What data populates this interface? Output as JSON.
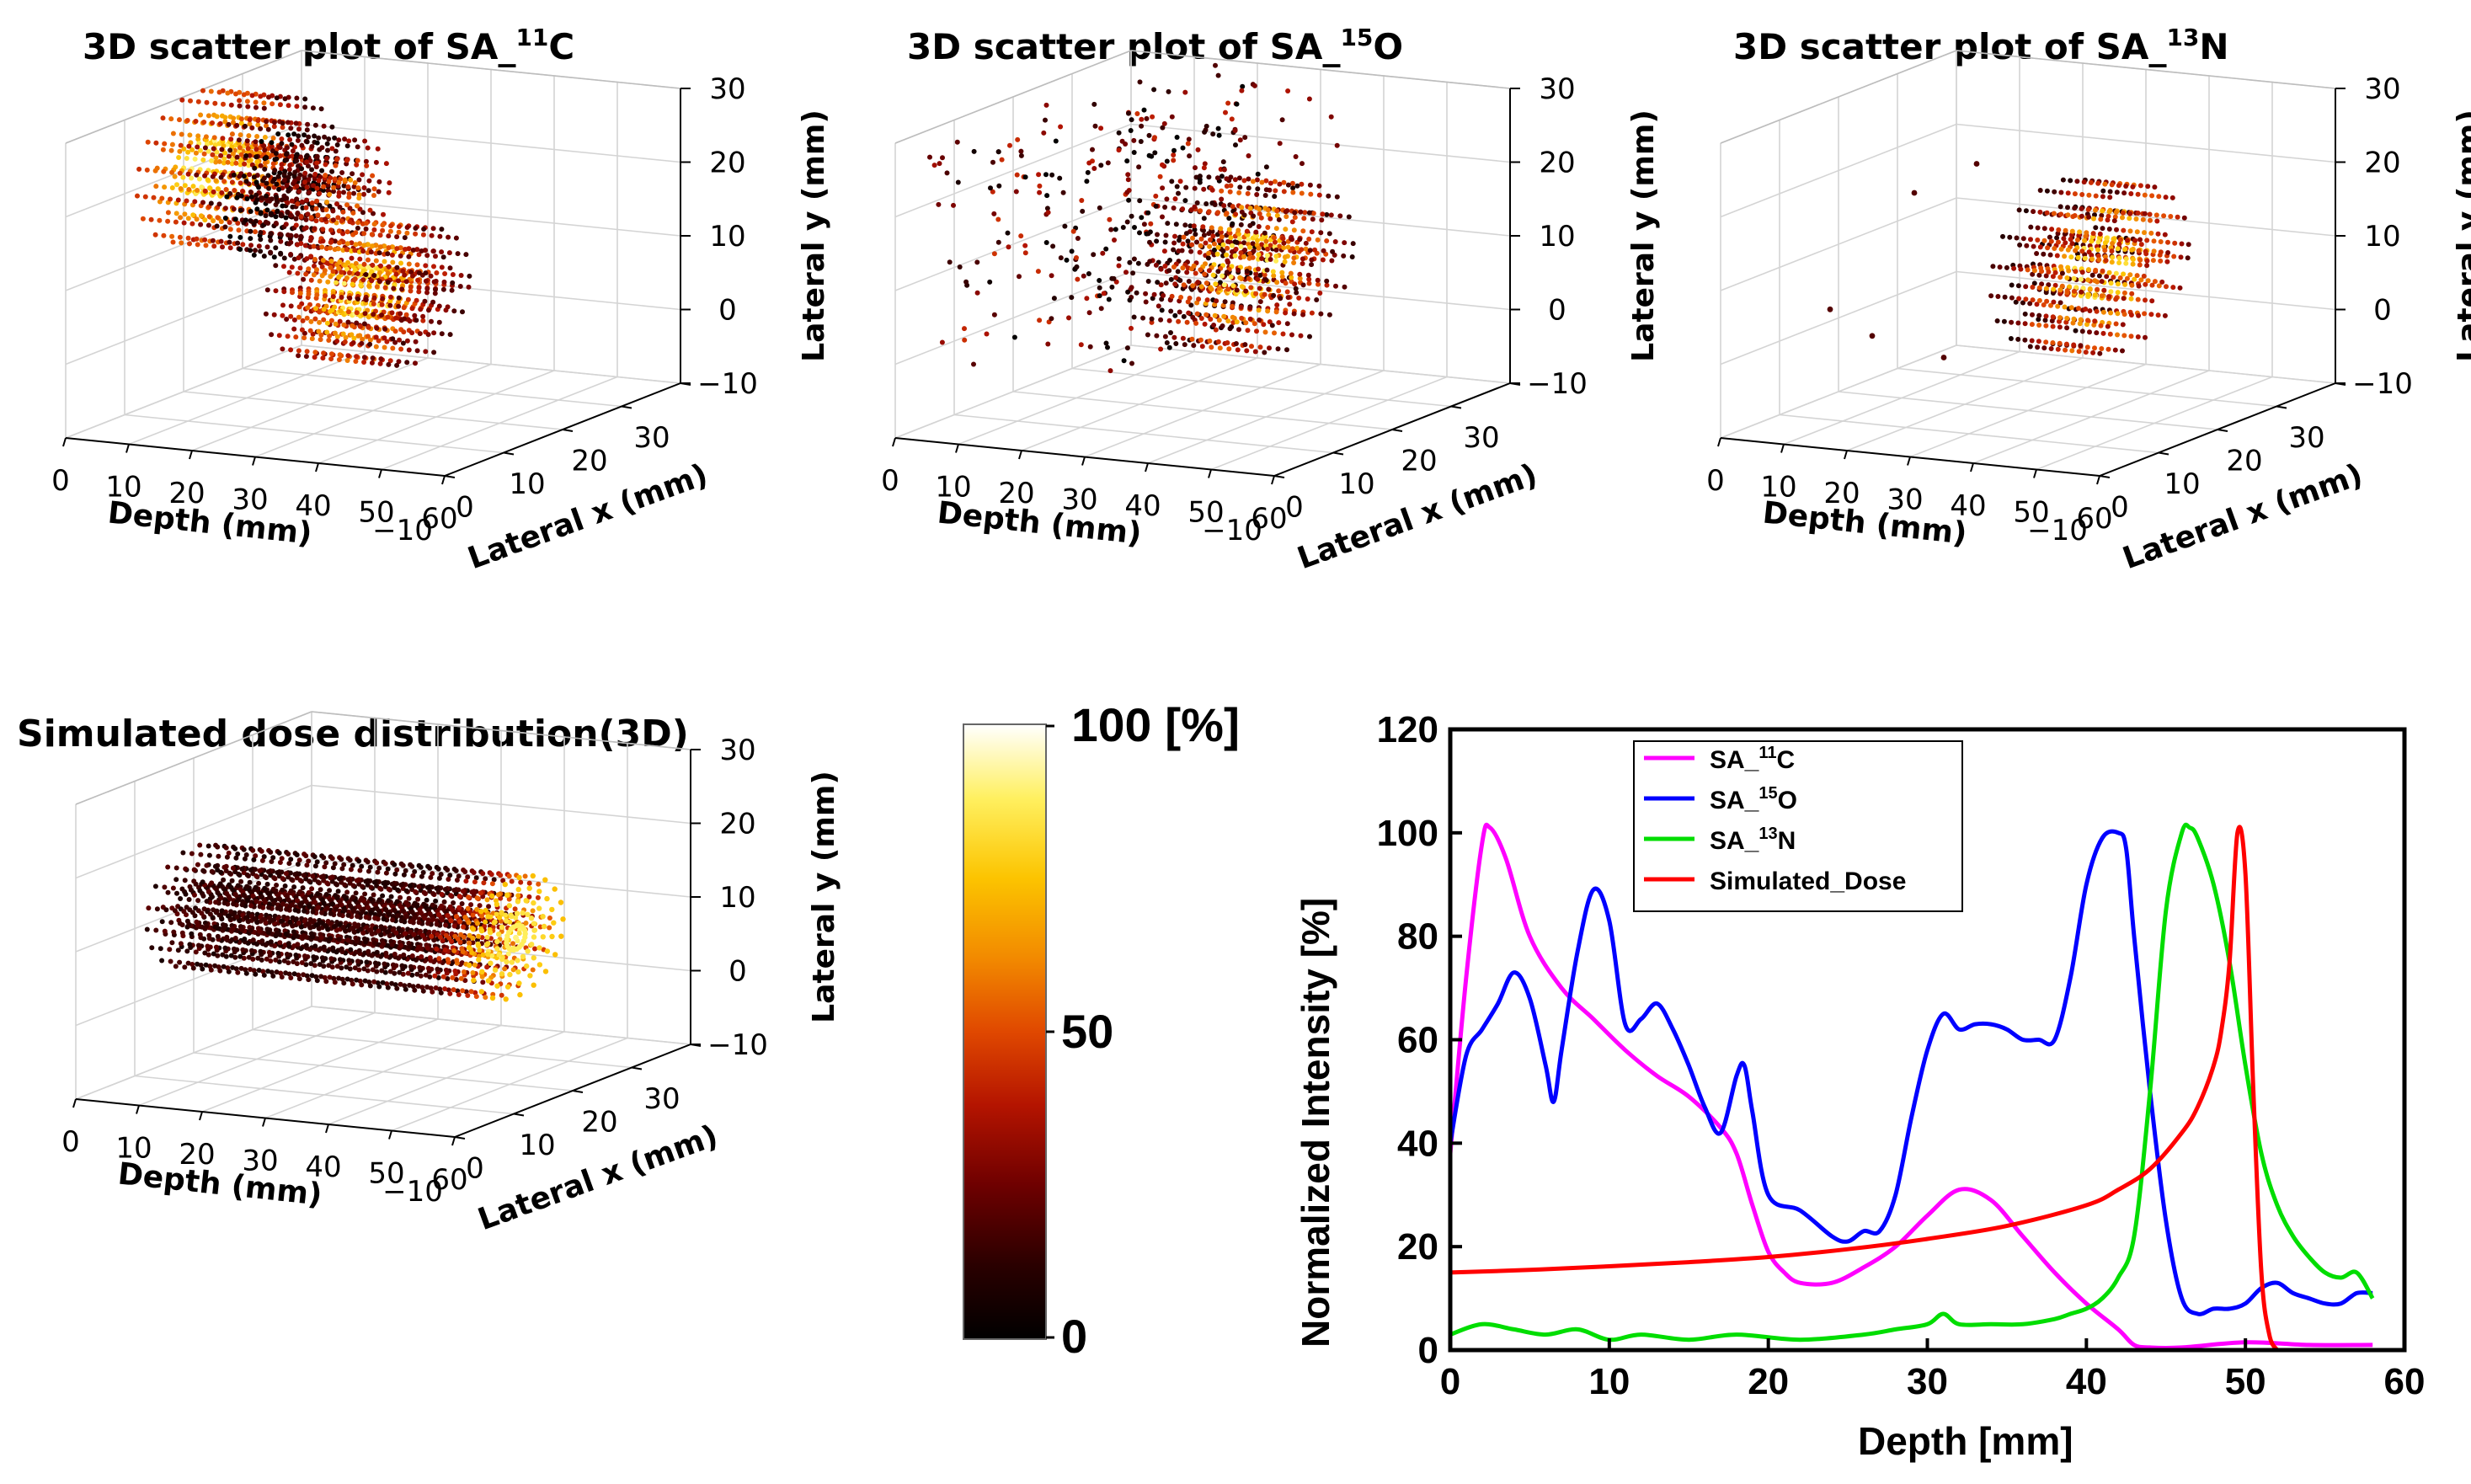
{
  "scatter_panels": [
    {
      "title_prefix": "3D scatter plot of SA_",
      "title_sup": "11",
      "title_suffix": "C",
      "kind": "carbon"
    },
    {
      "title_prefix": "3D scatter plot of SA_",
      "title_sup": "15",
      "title_suffix": "O",
      "kind": "oxygen"
    },
    {
      "title_prefix": "3D scatter plot of SA_",
      "title_sup": "13",
      "title_suffix": "N",
      "kind": "nitrogen"
    },
    {
      "title_prefix": "Simulated dose distribution(3D)",
      "title_sup": "",
      "title_suffix": "",
      "kind": "dose"
    }
  ],
  "axes3d": {
    "depth_label": "Depth (mm)",
    "depth_ticks": [
      "0",
      "10",
      "20",
      "30",
      "40",
      "50",
      "60"
    ],
    "lateral_x_label": "Lateral x (mm)",
    "lateral_x_ticks": [
      "−10",
      "0",
      "10",
      "20",
      "30"
    ],
    "lateral_y_label": "Lateral y (mm)",
    "lateral_y_ticks": [
      "−10",
      "0",
      "10",
      "20",
      "30"
    ]
  },
  "colorbar": {
    "labels": [
      "100 [%]",
      "50",
      "0"
    ],
    "stops": [
      "#000000",
      "#2a0000",
      "#6e0000",
      "#b41400",
      "#e04800",
      "#f28a00",
      "#fcc400",
      "#fff060",
      "#ffffff"
    ]
  },
  "chart_data": {
    "type": "line",
    "xlabel": "Depth [mm]",
    "ylabel": "Normalized Intensity [%]",
    "xlim": [
      0,
      60
    ],
    "ylim": [
      0,
      120
    ],
    "xticks": [
      0,
      10,
      20,
      30,
      40,
      50,
      60
    ],
    "yticks": [
      0,
      20,
      40,
      60,
      80,
      100,
      120
    ],
    "legend_position": "top-left",
    "series": [
      {
        "name": "SA_11C",
        "label_prefix": "SA_",
        "label_sup": "11",
        "label_suffix": "C",
        "color": "#ff00ff",
        "points": [
          [
            0,
            38
          ],
          [
            1,
            72
          ],
          [
            2,
            98
          ],
          [
            2.5,
            101
          ],
          [
            3.5,
            95
          ],
          [
            5,
            80
          ],
          [
            7,
            70
          ],
          [
            9,
            64
          ],
          [
            11,
            58
          ],
          [
            13,
            53
          ],
          [
            15,
            49
          ],
          [
            17,
            43
          ],
          [
            18,
            38
          ],
          [
            19,
            28
          ],
          [
            20,
            19
          ],
          [
            21,
            15
          ],
          [
            22,
            13
          ],
          [
            24,
            13
          ],
          [
            26,
            16
          ],
          [
            28,
            20
          ],
          [
            30,
            26
          ],
          [
            32,
            31
          ],
          [
            34,
            29
          ],
          [
            36,
            22
          ],
          [
            38,
            15
          ],
          [
            40,
            9
          ],
          [
            42,
            4
          ],
          [
            43,
            1
          ],
          [
            44,
            0.5
          ],
          [
            46,
            0.5
          ],
          [
            50,
            1.5
          ],
          [
            54,
            1
          ],
          [
            58,
            1
          ]
        ]
      },
      {
        "name": "SA_15O",
        "label_prefix": "SA_",
        "label_sup": "15",
        "label_suffix": "O",
        "color": "#0000ff",
        "points": [
          [
            0,
            40
          ],
          [
            1,
            57
          ],
          [
            2,
            62
          ],
          [
            3,
            67
          ],
          [
            4,
            73
          ],
          [
            5,
            68
          ],
          [
            6,
            55
          ],
          [
            6.5,
            48
          ],
          [
            7,
            58
          ],
          [
            8,
            77
          ],
          [
            9,
            89
          ],
          [
            10,
            83
          ],
          [
            11,
            63
          ],
          [
            12,
            64
          ],
          [
            13,
            67
          ],
          [
            14,
            62
          ],
          [
            15,
            55
          ],
          [
            16,
            47
          ],
          [
            17,
            42
          ],
          [
            18,
            53
          ],
          [
            18.5,
            55
          ],
          [
            19,
            46
          ],
          [
            20,
            30
          ],
          [
            22,
            27
          ],
          [
            24,
            22
          ],
          [
            25,
            21
          ],
          [
            26,
            23
          ],
          [
            27,
            23
          ],
          [
            28,
            30
          ],
          [
            29,
            45
          ],
          [
            30,
            58
          ],
          [
            31,
            65
          ],
          [
            32,
            62
          ],
          [
            33,
            63
          ],
          [
            34,
            63
          ],
          [
            35,
            62
          ],
          [
            36,
            60
          ],
          [
            37,
            60
          ],
          [
            38,
            60
          ],
          [
            39,
            72
          ],
          [
            40,
            90
          ],
          [
            41,
            99
          ],
          [
            42,
            100
          ],
          [
            42.5,
            97
          ],
          [
            43,
            80
          ],
          [
            44,
            50
          ],
          [
            45,
            25
          ],
          [
            46,
            10
          ],
          [
            47,
            7
          ],
          [
            48,
            8
          ],
          [
            49,
            8
          ],
          [
            50,
            9
          ],
          [
            51,
            12
          ],
          [
            52,
            13
          ],
          [
            53,
            11
          ],
          [
            54,
            10
          ],
          [
            55,
            9
          ],
          [
            56,
            9
          ],
          [
            57,
            11
          ],
          [
            58,
            11
          ]
        ]
      },
      {
        "name": "SA_13N",
        "label_prefix": "SA_",
        "label_sup": "13",
        "label_suffix": "N",
        "color": "#00dd00",
        "points": [
          [
            0,
            3
          ],
          [
            2,
            5
          ],
          [
            4,
            4
          ],
          [
            6,
            3
          ],
          [
            8,
            4
          ],
          [
            10,
            2
          ],
          [
            12,
            3
          ],
          [
            15,
            2
          ],
          [
            18,
            3
          ],
          [
            22,
            2
          ],
          [
            26,
            3
          ],
          [
            28,
            4
          ],
          [
            30,
            5
          ],
          [
            31,
            7
          ],
          [
            32,
            5
          ],
          [
            34,
            5
          ],
          [
            36,
            5
          ],
          [
            38,
            6
          ],
          [
            39,
            7
          ],
          [
            40,
            8
          ],
          [
            41,
            10
          ],
          [
            42,
            14
          ],
          [
            43,
            22
          ],
          [
            44,
            50
          ],
          [
            45,
            85
          ],
          [
            46,
            100
          ],
          [
            46.5,
            101
          ],
          [
            47,
            99
          ],
          [
            48,
            90
          ],
          [
            49,
            75
          ],
          [
            50,
            55
          ],
          [
            51,
            38
          ],
          [
            52,
            28
          ],
          [
            53,
            22
          ],
          [
            54,
            18
          ],
          [
            55,
            15
          ],
          [
            56,
            14
          ],
          [
            57,
            15
          ],
          [
            58,
            10
          ]
        ]
      },
      {
        "name": "Simulated_Dose",
        "label_prefix": "Simulated_Dose",
        "label_sup": "",
        "label_suffix": "",
        "color": "#ff0000",
        "points": [
          [
            0,
            15
          ],
          [
            5,
            15.5
          ],
          [
            10,
            16.2
          ],
          [
            15,
            17
          ],
          [
            20,
            18
          ],
          [
            25,
            19.5
          ],
          [
            30,
            21.5
          ],
          [
            35,
            24
          ],
          [
            40,
            28
          ],
          [
            42,
            31
          ],
          [
            44,
            35
          ],
          [
            46,
            42
          ],
          [
            47,
            47
          ],
          [
            48,
            55
          ],
          [
            48.5,
            62
          ],
          [
            49,
            75
          ],
          [
            49.5,
            100
          ],
          [
            50,
            92
          ],
          [
            50.5,
            50
          ],
          [
            51,
            15
          ],
          [
            51.5,
            3
          ],
          [
            52,
            0
          ]
        ]
      }
    ]
  }
}
